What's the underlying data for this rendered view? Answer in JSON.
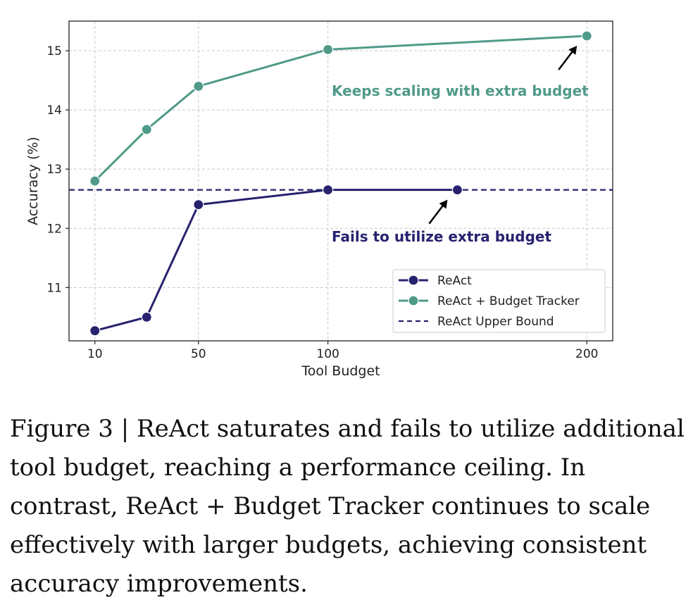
{
  "chart_data": {
    "type": "line",
    "xlabel": "Tool Budget",
    "ylabel": "Accuracy (%)",
    "xlim": [
      0,
      210
    ],
    "ylim": [
      10.1,
      15.5
    ],
    "x_ticks": [
      10,
      50,
      100,
      200
    ],
    "y_ticks": [
      11,
      12,
      13,
      14,
      15
    ],
    "grid": true,
    "legend_position": "bottom-right",
    "series": [
      {
        "name": "ReAct",
        "color": "#27226e",
        "x": [
          10,
          30,
          50,
          100,
          150
        ],
        "y": [
          10.27,
          10.5,
          12.4,
          12.65,
          12.65
        ]
      },
      {
        "name": "ReAct + Budget Tracker",
        "color": "#4f9a88",
        "x": [
          10,
          30,
          50,
          100,
          200
        ],
        "y": [
          12.8,
          13.67,
          14.4,
          15.02,
          15.25
        ]
      }
    ],
    "reference_lines": [
      {
        "name": "ReAct Upper Bound",
        "y": 12.65,
        "style": "dashed",
        "color": "#27226e"
      }
    ],
    "annotations": [
      {
        "text": "Keeps scaling with extra budget",
        "color": "#4f9a88",
        "points_to_series": 1,
        "points_to_index": 4
      },
      {
        "text": "Fails to utilize extra budget",
        "color": "#27226e",
        "points_to_series": 0,
        "points_to_index": 4
      }
    ]
  },
  "caption": "Figure 3 | ReAct saturates and fails to utilize additional tool budget, reaching a performance ceiling. In contrast, ReAct + Budget Tracker continues to scale effectively with larger budgets, achieving consistent accuracy improvements."
}
